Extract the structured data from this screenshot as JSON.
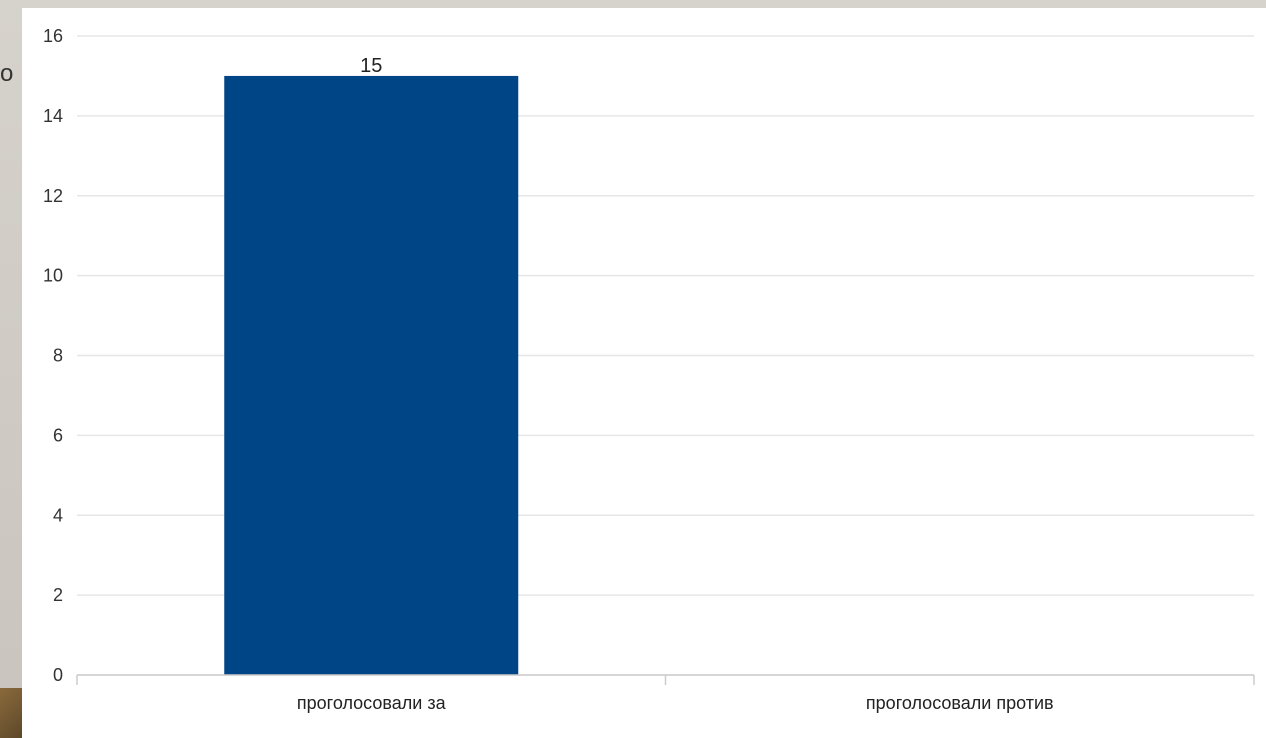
{
  "slide": {
    "peek_text": "о"
  },
  "colors": {
    "bar": "#004586",
    "grid": "#e6e6e6",
    "axis": "#cccccc",
    "panel": "#ffffff"
  },
  "chart_data": {
    "type": "bar",
    "categories": [
      "проголосовали за",
      "проголосовали против"
    ],
    "values": [
      15,
      0
    ],
    "data_labels": [
      "15",
      ""
    ],
    "ylim": [
      0,
      16
    ],
    "yticks": [
      "0",
      "2",
      "4",
      "6",
      "8",
      "10",
      "12",
      "14",
      "16"
    ],
    "grid": true,
    "legend": "none"
  }
}
